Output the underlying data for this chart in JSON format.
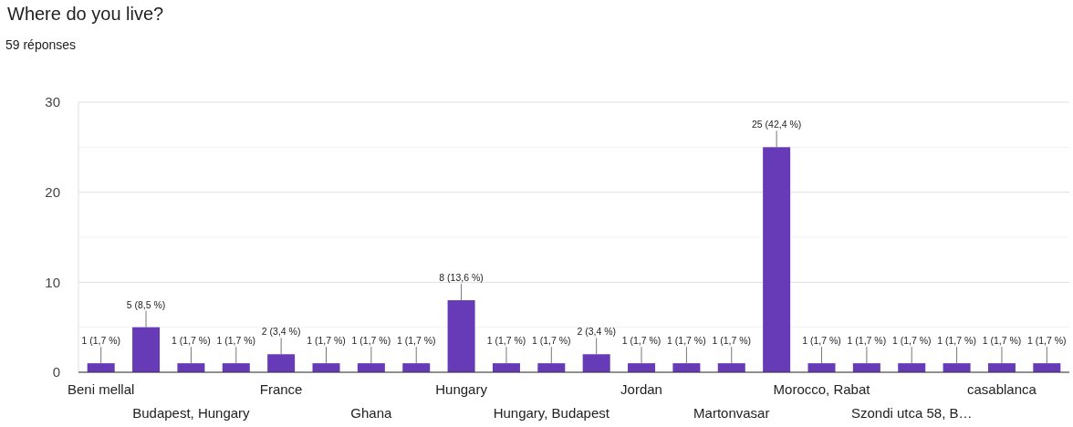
{
  "chart_data": {
    "type": "bar",
    "title": "Where do you live?",
    "subtitle": "59 réponses",
    "categories": [
      "Beni mellal",
      null,
      "Budapest, Hungary",
      null,
      "France",
      null,
      "Ghana",
      null,
      "Hungary",
      null,
      "Hungary, Budapest",
      null,
      "Jordan",
      null,
      "Martonvasar",
      null,
      "Morocco, Rabat",
      null,
      "Szondi utca 58, B…",
      null,
      "casablanca",
      null
    ],
    "values": [
      1,
      5,
      1,
      1,
      2,
      1,
      1,
      1,
      8,
      1,
      1,
      2,
      1,
      1,
      1,
      25,
      1,
      1,
      1,
      1,
      1,
      1
    ],
    "value_labels": [
      "1 (1,7 %)",
      "5 (8,5 %)",
      "1 (1,7 %)",
      "1 (1,7 %)",
      "2 (3,4 %)",
      "1 (1,7 %)",
      "1 (1,7 %)",
      "1 (1,7 %)",
      "8 (13,6 %)",
      "1 (1,7 %)",
      "1 (1,7 %)",
      "2 (3,4 %)",
      "1 (1,7 %)",
      "1 (1,7 %)",
      "1 (1,7 %)",
      "25 (42,4 %)",
      "1 (1,7 %)",
      "1 (1,7 %)",
      "1 (1,7 %)",
      "1 (1,7 %)",
      "1 (1,7 %)",
      "1 (1,7 %)"
    ],
    "color": "#673ab7",
    "ylim": [
      0,
      30
    ],
    "yticks": [
      0,
      {
        "value": 5,
        "label": null
      },
      10,
      {
        "value": 15,
        "label": null
      },
      20,
      {
        "value": 25,
        "label": null
      },
      30
    ],
    "grid": "y"
  }
}
